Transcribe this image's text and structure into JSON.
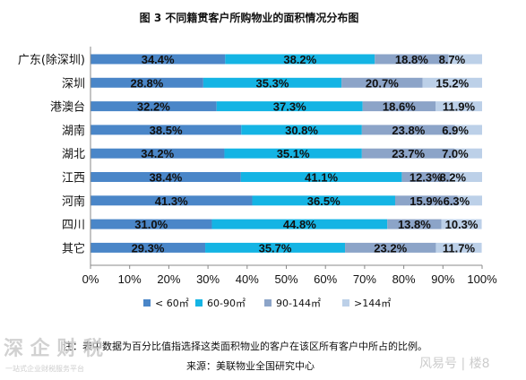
{
  "chart_data": {
    "type": "bar",
    "orientation": "horizontal",
    "stacked": true,
    "title": "图 3  不同籍贯客户所购物业的面积情况分布图",
    "categories": [
      "广东(除深圳)",
      "深圳",
      "港澳台",
      "湖南",
      "湖北",
      "江西",
      "河南",
      "四川",
      "其它"
    ],
    "series": [
      {
        "name": "< 60㎡",
        "color": "#4a86c8",
        "values": [
          34.4,
          28.8,
          32.2,
          38.5,
          34.2,
          38.4,
          41.3,
          31.0,
          29.3
        ]
      },
      {
        "name": "60-90㎡",
        "color": "#14b4e4",
        "values": [
          38.2,
          35.3,
          37.3,
          30.8,
          35.1,
          41.1,
          36.5,
          44.8,
          35.7
        ]
      },
      {
        "name": "90-144㎡",
        "color": "#8ca4c8",
        "values": [
          18.8,
          20.7,
          18.6,
          23.8,
          23.7,
          12.3,
          15.9,
          13.8,
          23.2
        ]
      },
      {
        "name": ">144㎡",
        "color": "#bcd0e8",
        "values": [
          8.7,
          15.2,
          11.9,
          6.9,
          7.0,
          8.2,
          6.3,
          10.3,
          11.7
        ]
      }
    ],
    "data_labels": [
      [
        "34.4%",
        "38.2%",
        "18.8%",
        "8.7%"
      ],
      [
        "28.8%",
        "35.3%",
        "20.7%",
        "15.2%"
      ],
      [
        "32.2%",
        "37.3%",
        "18.6%",
        "11.9%"
      ],
      [
        "38.5%",
        "30.8%",
        "23.8%",
        "6.9%"
      ],
      [
        "34.2%",
        "35.1%",
        "23.7%",
        "7.0%"
      ],
      [
        "38.4%",
        "41.1%",
        "12.3%",
        "8.2%"
      ],
      [
        "41.3%",
        "36.5%",
        "15.9%",
        "6.3%"
      ],
      [
        "31.0%",
        "44.8%",
        "13.8%",
        "10.3%"
      ],
      [
        "29.3%",
        "35.7%",
        "23.2%",
        "11.7%"
      ]
    ],
    "xlim": [
      0,
      100
    ],
    "x_tick_labels": [
      "0%",
      "10%",
      "20%",
      "30%",
      "40%",
      "50%",
      "60%",
      "70%",
      "80%",
      "90%",
      "100%"
    ],
    "grid": false,
    "legend_position": "bottom"
  },
  "notes": {
    "note": "注：表中数据为百分比值指选择这类面积物业的客户在该区所有客户中所占的比例。",
    "source": "来源：美联物业全国研究中心"
  },
  "watermarks": {
    "left_main": "深 企 财 税",
    "left_sub": "一站式企业财税服务平台",
    "right": "风易号 | 楼8"
  }
}
